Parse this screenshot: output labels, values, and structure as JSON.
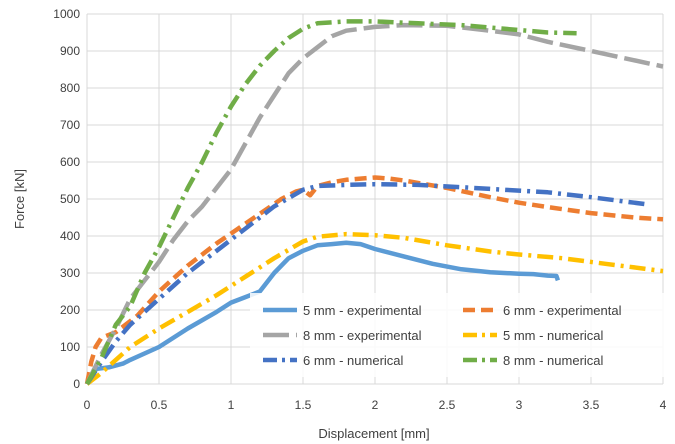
{
  "chart_data": {
    "type": "line",
    "title": "",
    "xlabel": "Displacement [mm]",
    "ylabel": "Force [kN]",
    "xlim": [
      0,
      4
    ],
    "ylim": [
      0,
      1000
    ],
    "x_ticks": [
      "0",
      "0.5",
      "1",
      "1.5",
      "2",
      "2.5",
      "3",
      "3.5",
      "4"
    ],
    "y_ticks": [
      "0",
      "100",
      "200",
      "300",
      "400",
      "500",
      "600",
      "700",
      "800",
      "900",
      "1000"
    ],
    "grid": true,
    "legend_position": "lower-right",
    "series": [
      {
        "name": "5 mm - experimental",
        "color": "#5B9BD5",
        "dash": "solid",
        "points": [
          [
            0,
            0
          ],
          [
            0.05,
            40
          ],
          [
            0.15,
            45
          ],
          [
            0.25,
            55
          ],
          [
            0.3,
            65
          ],
          [
            0.5,
            100
          ],
          [
            0.7,
            150
          ],
          [
            0.9,
            195
          ],
          [
            1.0,
            220
          ],
          [
            1.1,
            235
          ],
          [
            1.2,
            250
          ],
          [
            1.3,
            300
          ],
          [
            1.4,
            340
          ],
          [
            1.5,
            360
          ],
          [
            1.6,
            375
          ],
          [
            1.7,
            378
          ],
          [
            1.8,
            382
          ],
          [
            1.9,
            378
          ],
          [
            2.0,
            365
          ],
          [
            2.2,
            345
          ],
          [
            2.4,
            325
          ],
          [
            2.6,
            310
          ],
          [
            2.8,
            302
          ],
          [
            3.0,
            298
          ],
          [
            3.1,
            297
          ],
          [
            3.2,
            293
          ],
          [
            3.26,
            292
          ],
          [
            3.27,
            280
          ]
        ]
      },
      {
        "name": "6 mm - experimental",
        "color": "#ED7D31",
        "dash": "dash",
        "points": [
          [
            0,
            0
          ],
          [
            0.03,
            60
          ],
          [
            0.06,
            100
          ],
          [
            0.1,
            125
          ],
          [
            0.2,
            140
          ],
          [
            0.35,
            185
          ],
          [
            0.5,
            250
          ],
          [
            0.7,
            320
          ],
          [
            0.9,
            380
          ],
          [
            1.05,
            420
          ],
          [
            1.2,
            460
          ],
          [
            1.35,
            500
          ],
          [
            1.45,
            520
          ],
          [
            1.5,
            525
          ],
          [
            1.55,
            510
          ],
          [
            1.6,
            535
          ],
          [
            1.7,
            545
          ],
          [
            1.8,
            552
          ],
          [
            1.9,
            555
          ],
          [
            2.0,
            558
          ],
          [
            2.1,
            555
          ],
          [
            2.2,
            550
          ],
          [
            2.5,
            530
          ],
          [
            2.8,
            505
          ],
          [
            3.0,
            490
          ],
          [
            3.2,
            478
          ],
          [
            3.5,
            462
          ],
          [
            3.8,
            450
          ],
          [
            4.0,
            445
          ]
        ]
      },
      {
        "name": "8 mm - experimental",
        "color": "#A5A5A5",
        "dash": "longdash",
        "points": [
          [
            0,
            0
          ],
          [
            0.1,
            80
          ],
          [
            0.2,
            150
          ],
          [
            0.3,
            230
          ],
          [
            0.4,
            280
          ],
          [
            0.5,
            330
          ],
          [
            0.6,
            390
          ],
          [
            0.7,
            440
          ],
          [
            0.8,
            480
          ],
          [
            0.9,
            530
          ],
          [
            1.0,
            580
          ],
          [
            1.1,
            650
          ],
          [
            1.2,
            720
          ],
          [
            1.3,
            780
          ],
          [
            1.4,
            840
          ],
          [
            1.5,
            880
          ],
          [
            1.6,
            910
          ],
          [
            1.7,
            940
          ],
          [
            1.8,
            955
          ],
          [
            2.0,
            965
          ],
          [
            2.2,
            970
          ],
          [
            2.5,
            968
          ],
          [
            2.8,
            955
          ],
          [
            3.0,
            945
          ],
          [
            3.2,
            925
          ],
          [
            3.5,
            900
          ],
          [
            3.8,
            875
          ],
          [
            4.0,
            858
          ]
        ]
      },
      {
        "name": "5 mm - numerical",
        "color": "#FFC000",
        "dash": "dashdot",
        "points": [
          [
            0,
            0
          ],
          [
            0.1,
            30
          ],
          [
            0.2,
            65
          ],
          [
            0.3,
            100
          ],
          [
            0.5,
            150
          ],
          [
            0.7,
            195
          ],
          [
            0.9,
            240
          ],
          [
            1.1,
            290
          ],
          [
            1.3,
            340
          ],
          [
            1.5,
            385
          ],
          [
            1.6,
            398
          ],
          [
            1.8,
            405
          ],
          [
            2.0,
            402
          ],
          [
            2.2,
            395
          ],
          [
            2.5,
            375
          ],
          [
            2.8,
            358
          ],
          [
            3.0,
            350
          ],
          [
            3.3,
            340
          ],
          [
            3.6,
            325
          ],
          [
            3.8,
            315
          ],
          [
            4.0,
            305
          ]
        ]
      },
      {
        "name": "6 mm - numerical",
        "color": "#4472C4",
        "dash": "dashdot",
        "points": [
          [
            0,
            0
          ],
          [
            0.1,
            60
          ],
          [
            0.2,
            115
          ],
          [
            0.3,
            160
          ],
          [
            0.5,
            230
          ],
          [
            0.7,
            300
          ],
          [
            0.9,
            360
          ],
          [
            1.1,
            420
          ],
          [
            1.3,
            480
          ],
          [
            1.5,
            525
          ],
          [
            1.6,
            535
          ],
          [
            1.8,
            538
          ],
          [
            2.0,
            540
          ],
          [
            2.3,
            538
          ],
          [
            2.6,
            532
          ],
          [
            2.9,
            525
          ],
          [
            3.2,
            518
          ],
          [
            3.5,
            505
          ],
          [
            3.8,
            490
          ],
          [
            3.9,
            485
          ]
        ]
      },
      {
        "name": "8 mm - numerical",
        "color": "#70AD47",
        "dash": "dashdot",
        "points": [
          [
            0,
            0
          ],
          [
            0.1,
            70
          ],
          [
            0.2,
            160
          ],
          [
            0.3,
            210
          ],
          [
            0.4,
            300
          ],
          [
            0.5,
            370
          ],
          [
            0.6,
            450
          ],
          [
            0.7,
            530
          ],
          [
            0.8,
            600
          ],
          [
            0.9,
            680
          ],
          [
            1.0,
            750
          ],
          [
            1.1,
            810
          ],
          [
            1.2,
            860
          ],
          [
            1.3,
            900
          ],
          [
            1.4,
            935
          ],
          [
            1.5,
            960
          ],
          [
            1.6,
            975
          ],
          [
            1.8,
            980
          ],
          [
            2.0,
            980
          ],
          [
            2.3,
            975
          ],
          [
            2.6,
            970
          ],
          [
            2.9,
            960
          ],
          [
            3.2,
            950
          ],
          [
            3.4,
            948
          ]
        ]
      }
    ]
  }
}
